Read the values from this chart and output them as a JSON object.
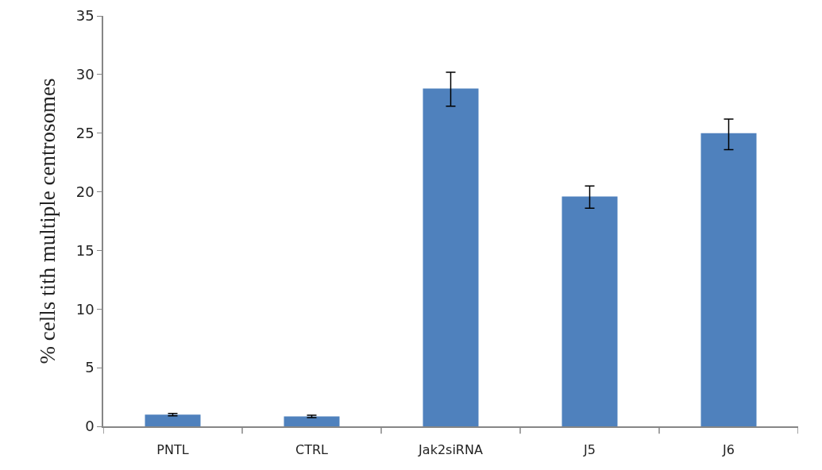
{
  "chart_data": {
    "type": "bar",
    "ylabel": "% cells tith multiple centrosomes",
    "categories": [
      "PNTL",
      "CTRL",
      "Jak2siRNA",
      "J5",
      "J6"
    ],
    "values": [
      1.0,
      0.85,
      28.8,
      19.6,
      25.0
    ],
    "errors": [
      0.1,
      0.1,
      [
        27.3,
        30.2
      ],
      [
        18.6,
        20.5
      ],
      [
        23.6,
        26.2
      ]
    ],
    "color": "#4f81bd",
    "ylim": [
      0,
      35
    ],
    "yticks": [
      0,
      5,
      10,
      15,
      20,
      25,
      30,
      35
    ],
    "grid": false
  }
}
